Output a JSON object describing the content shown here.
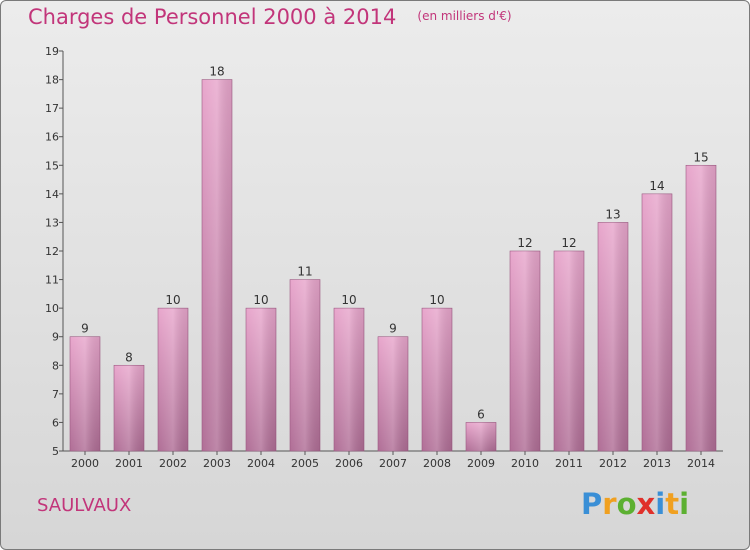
{
  "header": {
    "title": "Charges de Personnel 2000 à 2014",
    "subtitle": "(en milliers d'€)"
  },
  "footer": {
    "commune": "SAULVAUX",
    "logo_text": "Proxiti",
    "logo_letters": [
      {
        "ch": "P",
        "color": "#3a8fd6"
      },
      {
        "ch": "r",
        "color": "#f0a020"
      },
      {
        "ch": "o",
        "color": "#5cb031"
      },
      {
        "ch": "x",
        "color": "#e0302a"
      },
      {
        "ch": "i",
        "color": "#3a8fd6"
      },
      {
        "ch": "t",
        "color": "#f0a020"
      },
      {
        "ch": "i",
        "color": "#5cb031"
      }
    ]
  },
  "chart_data": {
    "type": "bar",
    "title": "Charges de Personnel 2000 à 2014",
    "subtitle": "(en milliers d'€)",
    "categories": [
      "2000",
      "2001",
      "2002",
      "2003",
      "2004",
      "2005",
      "2006",
      "2007",
      "2008",
      "2009",
      "2010",
      "2011",
      "2012",
      "2013",
      "2014"
    ],
    "values": [
      9,
      8,
      10,
      18,
      10,
      11,
      10,
      9,
      10,
      6,
      12,
      12,
      13,
      14,
      15
    ],
    "ylim": [
      5,
      19
    ],
    "yticks": [
      5,
      6,
      7,
      8,
      9,
      10,
      11,
      12,
      13,
      14,
      15,
      16,
      17,
      18,
      19
    ],
    "grid": false,
    "bar_color": "#d98fba",
    "bar_color_dark": "#b06e96",
    "accent_color": "#c2357a"
  }
}
